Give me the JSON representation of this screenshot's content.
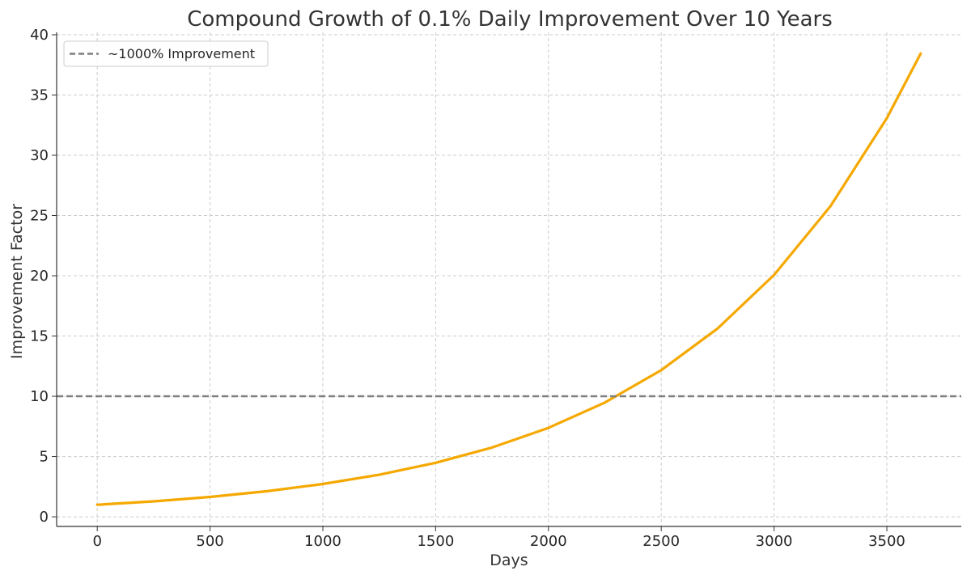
{
  "chart_data": {
    "type": "line",
    "title": "Compound Growth of 0.1% Daily Improvement Over 10 Years",
    "xlabel": "Days",
    "ylabel": "Improvement Factor",
    "xlim": [
      -180,
      3830
    ],
    "ylim": [
      -0.8,
      40.2
    ],
    "xticks": [
      0,
      500,
      1000,
      1500,
      2000,
      2500,
      3000,
      3500
    ],
    "yticks": [
      0,
      5,
      10,
      15,
      20,
      25,
      30,
      35,
      40
    ],
    "grid": true,
    "legend": {
      "placement": "top-left",
      "entries": [
        "~1000% Improvement"
      ]
    },
    "series": [
      {
        "style": "solid",
        "color": "#f5a800",
        "x": [
          0,
          250,
          500,
          750,
          1000,
          1250,
          1500,
          1750,
          2000,
          2250,
          2500,
          2750,
          3000,
          3250,
          3500,
          3650
        ],
        "y": [
          1.0,
          1.28,
          1.65,
          2.12,
          2.72,
          3.49,
          4.48,
          5.75,
          7.38,
          9.48,
          12.17,
          15.63,
          20.07,
          25.77,
          33.08,
          38.44
        ]
      },
      {
        "name": "~1000% Improvement",
        "style": "dashed",
        "color": "#7f7f7f",
        "hline": 10
      }
    ]
  }
}
